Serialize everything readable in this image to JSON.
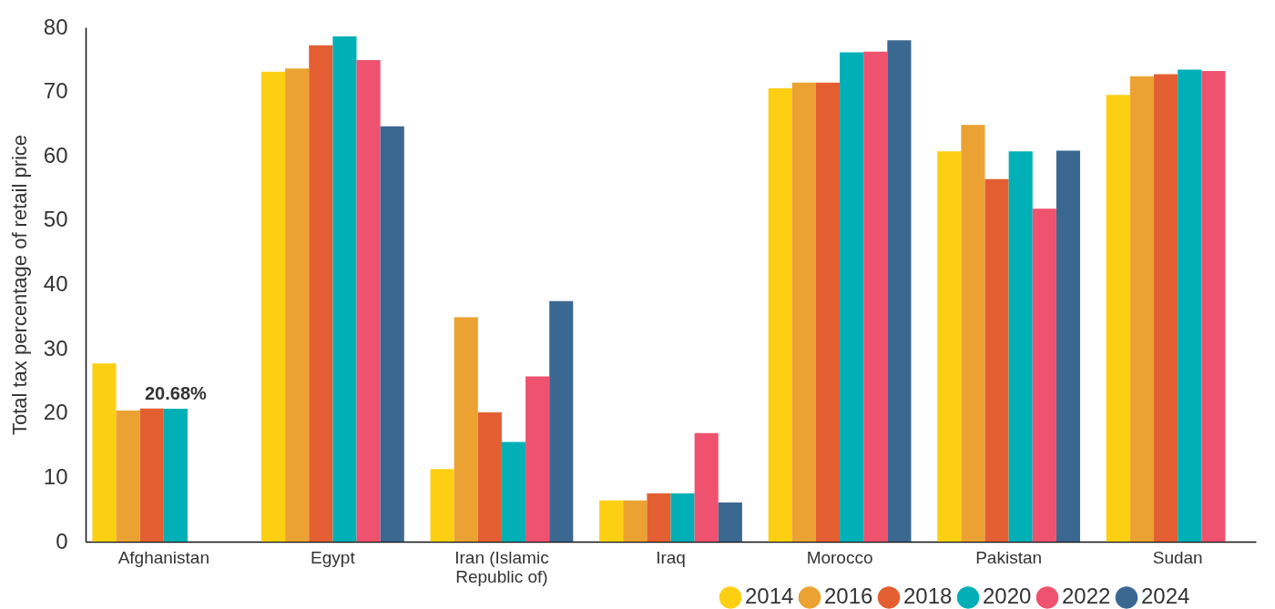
{
  "chart_data": {
    "type": "bar",
    "ylabel": "Total tax percentage of retail price",
    "categories": [
      "Afghanistan",
      "Egypt",
      "Iran (Islamic Republic of)",
      "Iraq",
      "Morocco",
      "Pakistan",
      "Sudan"
    ],
    "series": [
      {
        "name": "2014",
        "color": "#fdcf13",
        "values": [
          27.7,
          73.1,
          11.3,
          6.4,
          70.5,
          60.7,
          69.5
        ]
      },
      {
        "name": "2016",
        "color": "#eba232",
        "values": [
          20.4,
          73.6,
          34.9,
          6.4,
          71.4,
          64.8,
          72.4
        ]
      },
      {
        "name": "2018",
        "color": "#e35f31",
        "values": [
          20.7,
          77.2,
          20.1,
          7.5,
          71.4,
          56.4,
          72.7
        ]
      },
      {
        "name": "2020",
        "color": "#00b0b6",
        "values": [
          20.68,
          78.6,
          15.5,
          7.5,
          76.1,
          60.7,
          73.4
        ],
        "value_labels": [
          "20.68%",
          null,
          null,
          null,
          null,
          null,
          null
        ]
      },
      {
        "name": "2022",
        "color": "#ee526f",
        "values": [
          null,
          74.9,
          25.7,
          16.9,
          76.2,
          51.8,
          73.2
        ]
      },
      {
        "name": "2024",
        "color": "#3b6891",
        "values": [
          null,
          64.6,
          37.4,
          6.1,
          78.0,
          60.8,
          null
        ]
      }
    ],
    "ylim": [
      0,
      80
    ],
    "yticks": [
      0,
      10,
      20,
      30,
      40,
      50,
      60,
      70,
      80
    ],
    "grid": false,
    "legend": "bottom right"
  }
}
